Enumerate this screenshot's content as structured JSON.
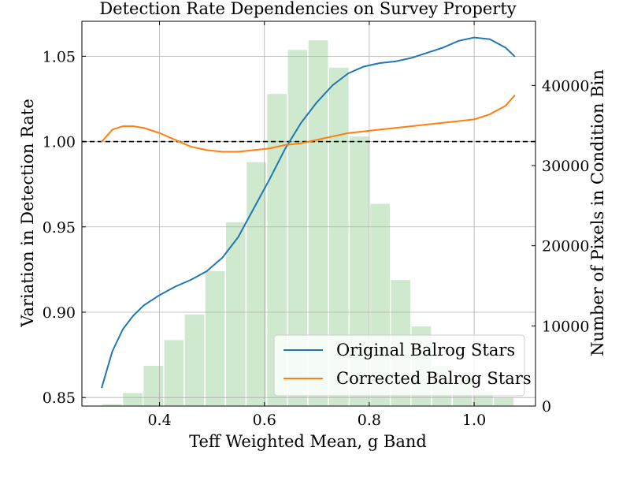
{
  "chart_data": {
    "type": "line",
    "title": "Detection Rate Dependencies on Survey Property",
    "xlabel": "Teff Weighted Mean, g Band",
    "ylabel": "Variation in Detection Rate",
    "y2label": "Number of Pixels in Condition Bin",
    "xlim": [
      0.252,
      1.117
    ],
    "ylim": [
      0.845,
      1.0705
    ],
    "y2lim": [
      0,
      48000
    ],
    "x_ticks": [
      0.4,
      0.6,
      0.8,
      1.0
    ],
    "x_tick_labels": [
      "0.4",
      "0.6",
      "0.8",
      "1.0"
    ],
    "y_ticks": [
      0.85,
      0.9,
      0.95,
      1.0,
      1.05
    ],
    "y_tick_labels": [
      "0.85",
      "0.90",
      "0.95",
      "1.00",
      "1.05"
    ],
    "y2_ticks": [
      0,
      10000,
      20000,
      30000,
      40000
    ],
    "y2_tick_labels": [
      "0",
      "10000",
      "20000",
      "30000",
      "40000"
    ],
    "grid": true,
    "reference_line": {
      "y": 1.0,
      "style": "dashed",
      "color": "#000000"
    },
    "legend_position": "lower-right",
    "series": [
      {
        "name": "Original Balrog Stars",
        "color": "#1f77b4",
        "x": [
          0.29,
          0.31,
          0.33,
          0.35,
          0.37,
          0.4,
          0.43,
          0.46,
          0.49,
          0.52,
          0.55,
          0.58,
          0.61,
          0.64,
          0.67,
          0.7,
          0.73,
          0.76,
          0.79,
          0.82,
          0.85,
          0.88,
          0.91,
          0.94,
          0.97,
          1.0,
          1.03,
          1.06,
          1.077
        ],
        "y": [
          0.856,
          0.877,
          0.89,
          0.898,
          0.904,
          0.91,
          0.915,
          0.919,
          0.924,
          0.932,
          0.944,
          0.961,
          0.978,
          0.996,
          1.011,
          1.023,
          1.033,
          1.04,
          1.044,
          1.046,
          1.047,
          1.049,
          1.052,
          1.055,
          1.059,
          1.061,
          1.06,
          1.055,
          1.05
        ]
      },
      {
        "name": "Corrected Balrog Stars",
        "color": "#ff7f0e",
        "x": [
          0.29,
          0.31,
          0.33,
          0.35,
          0.37,
          0.4,
          0.43,
          0.46,
          0.49,
          0.52,
          0.55,
          0.58,
          0.61,
          0.64,
          0.67,
          0.7,
          0.73,
          0.76,
          0.79,
          0.82,
          0.85,
          0.88,
          0.91,
          0.94,
          0.97,
          1.0,
          1.03,
          1.06,
          1.077
        ],
        "y": [
          1.0,
          1.007,
          1.009,
          1.009,
          1.008,
          1.005,
          1.001,
          0.997,
          0.995,
          0.994,
          0.994,
          0.995,
          0.996,
          0.998,
          0.999,
          1.001,
          1.003,
          1.005,
          1.006,
          1.007,
          1.008,
          1.009,
          1.01,
          1.011,
          1.012,
          1.013,
          1.016,
          1.021,
          1.027
        ]
      }
    ],
    "histogram": {
      "axis": "right",
      "color": "#2ca02c",
      "bin_start": 0.29,
      "bin_width": 0.0393,
      "counts": [
        300,
        1700,
        5100,
        8300,
        11500,
        16900,
        23000,
        30500,
        39000,
        44500,
        45700,
        42300,
        33700,
        25300,
        15800,
        10000,
        5100,
        3500,
        1900,
        1100
      ]
    }
  }
}
